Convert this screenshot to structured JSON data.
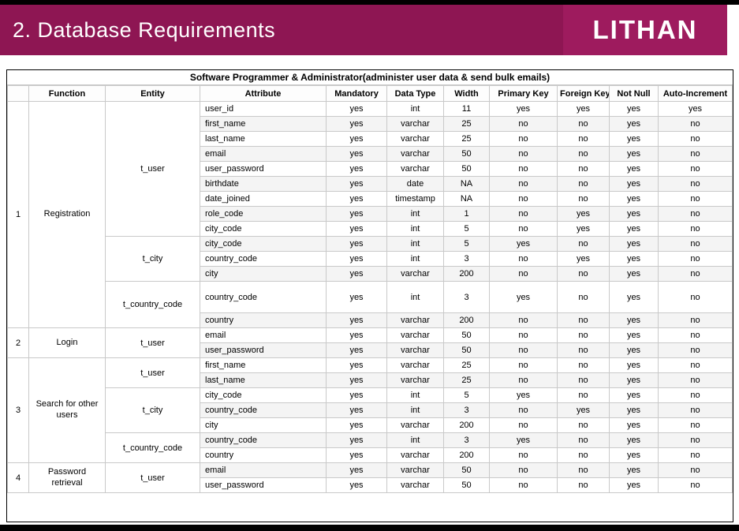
{
  "header": {
    "title": "2. Database Requirements",
    "logo_text": "LITHAN"
  },
  "colors": {
    "header_bar": "#8E1653",
    "logo_box": "#9E1B5E"
  },
  "table": {
    "title": "Software Programmer & Administrator(administer user data & send bulk emails)",
    "columns": [
      "",
      "Function",
      "Entity",
      "Attribute",
      "Mandatory",
      "Data Type",
      "Width",
      "Primary Key",
      "Foreign Key",
      "Not Null",
      "Auto-Increment"
    ],
    "groups": [
      {
        "num": "1",
        "function": "Registration",
        "entities": [
          {
            "name": "t_user",
            "rows": [
              [
                "user_id",
                "yes",
                "int",
                "11",
                "yes",
                "yes",
                "yes",
                "yes"
              ],
              [
                "first_name",
                "yes",
                "varchar",
                "25",
                "no",
                "no",
                "yes",
                "no"
              ],
              [
                "last_name",
                "yes",
                "varchar",
                "25",
                "no",
                "no",
                "yes",
                "no"
              ],
              [
                "email",
                "yes",
                "varchar",
                "50",
                "no",
                "no",
                "yes",
                "no"
              ],
              [
                "user_password",
                "yes",
                "varchar",
                "50",
                "no",
                "no",
                "yes",
                "no"
              ],
              [
                "birthdate",
                "yes",
                "date",
                "NA",
                "no",
                "no",
                "yes",
                "no"
              ],
              [
                "date_joined",
                "yes",
                "timestamp",
                "NA",
                "no",
                "no",
                "yes",
                "no"
              ],
              [
                "role_code",
                "yes",
                "int",
                "1",
                "no",
                "yes",
                "yes",
                "no"
              ],
              [
                "city_code",
                "yes",
                "int",
                "5",
                "no",
                "yes",
                "yes",
                "no"
              ]
            ]
          },
          {
            "name": "t_city",
            "rows": [
              [
                "city_code",
                "yes",
                "int",
                "5",
                "yes",
                "no",
                "yes",
                "no"
              ],
              [
                "country_code",
                "yes",
                "int",
                "3",
                "no",
                "yes",
                "yes",
                "no"
              ],
              [
                "city",
                "yes",
                "varchar",
                "200",
                "no",
                "no",
                "yes",
                "no"
              ]
            ]
          },
          {
            "name": "t_country_code",
            "rows": [
              {
                "cells": [
                  "country_code",
                  "yes",
                  "int",
                  "3",
                  "yes",
                  "no",
                  "yes",
                  "no"
                ],
                "tall": true
              },
              [
                "country",
                "yes",
                "varchar",
                "200",
                "no",
                "no",
                "yes",
                "no"
              ]
            ]
          }
        ]
      },
      {
        "num": "2",
        "function": "Login",
        "entities": [
          {
            "name": "t_user",
            "rows": [
              [
                "email",
                "yes",
                "varchar",
                "50",
                "no",
                "no",
                "yes",
                "no"
              ],
              [
                "user_password",
                "yes",
                "varchar",
                "50",
                "no",
                "no",
                "yes",
                "no"
              ]
            ]
          }
        ]
      },
      {
        "num": "3",
        "function": "Search for other users",
        "entities": [
          {
            "name": "t_user",
            "rows": [
              [
                "first_name",
                "yes",
                "varchar",
                "25",
                "no",
                "no",
                "yes",
                "no"
              ],
              [
                "last_name",
                "yes",
                "varchar",
                "25",
                "no",
                "no",
                "yes",
                "no"
              ]
            ]
          },
          {
            "name": "t_city",
            "rows": [
              [
                "city_code",
                "yes",
                "int",
                "5",
                "yes",
                "no",
                "yes",
                "no"
              ],
              [
                "country_code",
                "yes",
                "int",
                "3",
                "no",
                "yes",
                "yes",
                "no"
              ],
              [
                "city",
                "yes",
                "varchar",
                "200",
                "no",
                "no",
                "yes",
                "no"
              ]
            ]
          },
          {
            "name": "t_country_code",
            "rows": [
              [
                "country_code",
                "yes",
                "int",
                "3",
                "yes",
                "no",
                "yes",
                "no"
              ],
              [
                "country",
                "yes",
                "varchar",
                "200",
                "no",
                "no",
                "yes",
                "no"
              ]
            ]
          }
        ]
      },
      {
        "num": "4",
        "function": "Password retrieval",
        "entities": [
          {
            "name": "t_user",
            "rows": [
              [
                "email",
                "yes",
                "varchar",
                "50",
                "no",
                "no",
                "yes",
                "no"
              ],
              [
                "user_password",
                "yes",
                "varchar",
                "50",
                "no",
                "no",
                "yes",
                "no"
              ]
            ]
          }
        ]
      }
    ]
  }
}
